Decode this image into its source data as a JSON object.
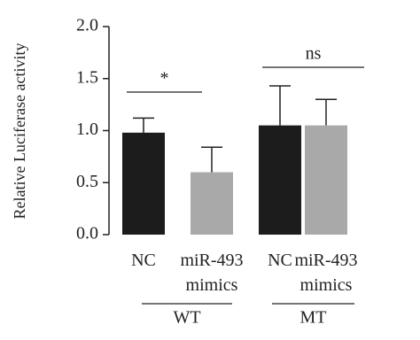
{
  "chart_data": {
    "type": "bar",
    "ylabel": "Relative Luciferase activity",
    "categories": [
      "NC",
      "miR-493 mimics",
      "NC",
      "miR-493 mimics"
    ],
    "groups": [
      "WT",
      "MT"
    ],
    "values": [
      0.98,
      0.6,
      1.05,
      1.05
    ],
    "errors": [
      0.14,
      0.24,
      0.38,
      0.25
    ],
    "colors": [
      "#1c1c1c",
      "#a9a9a9",
      "#1c1c1c",
      "#a9a9a9"
    ],
    "annotations": [
      "*",
      "ns"
    ],
    "ylim": [
      0,
      2
    ],
    "yticks": [
      {
        "value": 0,
        "label": "0.0"
      },
      {
        "value": 0.5,
        "label": "0.5"
      },
      {
        "value": 1,
        "label": "1.0"
      },
      {
        "value": 1.5,
        "label": "1.5"
      },
      {
        "value": 2,
        "label": "2.0"
      }
    ]
  }
}
